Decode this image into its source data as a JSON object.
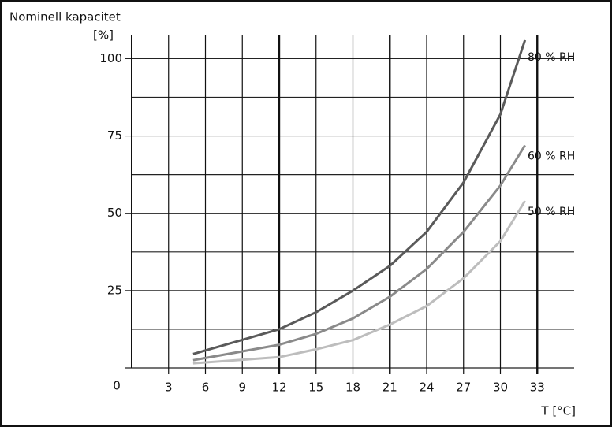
{
  "chart_data": {
    "type": "line",
    "title": "Nominell kapacitet",
    "y_label": "[%]",
    "x_label": "T [°C]",
    "xlim": [
      0,
      36
    ],
    "xticks": [
      3,
      6,
      9,
      12,
      15,
      18,
      21,
      24,
      27,
      30,
      33
    ],
    "major_xgrid": [
      12,
      21,
      33
    ],
    "ylim": [
      0,
      107.5
    ],
    "yticks": [
      0,
      25,
      50,
      75,
      100
    ],
    "y_minor_grid": [
      12.5,
      37.5,
      62.5,
      87.5
    ],
    "grid": true,
    "x": [
      5,
      12,
      15,
      18,
      21,
      24,
      27,
      30,
      32
    ],
    "series": [
      {
        "name": "80 % RH",
        "color": "#5a5a5a",
        "values": [
          4.5,
          12.5,
          18,
          25,
          33,
          44,
          60,
          82,
          106
        ]
      },
      {
        "name": "60 % RH",
        "color": "#8a8a8a",
        "values": [
          2.5,
          7.5,
          11,
          16,
          23,
          32,
          44,
          59,
          72
        ]
      },
      {
        "name": "50 % RH",
        "color": "#bdbdbd",
        "values": [
          1.5,
          3.5,
          6,
          9,
          14,
          20,
          29,
          41,
          54
        ]
      }
    ]
  }
}
